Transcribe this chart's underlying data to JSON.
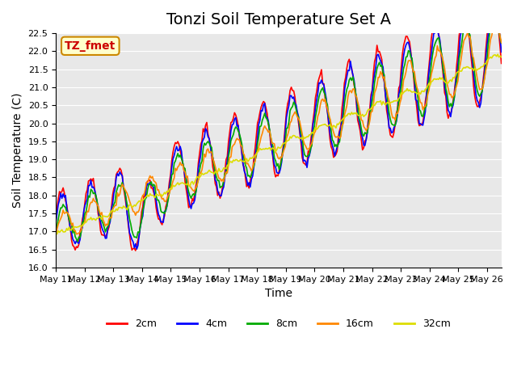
{
  "title": "Tonzi Soil Temperature Set A",
  "xlabel": "Time",
  "ylabel": "Soil Temperature (C)",
  "ylim": [
    16.0,
    22.5
  ],
  "xlim": [
    0,
    15.5
  ],
  "colors": {
    "2cm": "#ff0000",
    "4cm": "#0000ff",
    "8cm": "#00aa00",
    "16cm": "#ff8800",
    "32cm": "#dddd00"
  },
  "legend_labels": [
    "2cm",
    "4cm",
    "8cm",
    "16cm",
    "32cm"
  ],
  "annotation_text": "TZ_fmet",
  "annotation_bg": "#ffffcc",
  "annotation_border": "#cc8800",
  "background_color": "#e8e8e8",
  "x_tick_labels": [
    "May 11",
    "May 12",
    "May 13",
    "May 14",
    "May 15",
    "May 16",
    "May 17",
    "May 18",
    "May 19",
    "May 20",
    "May 21",
    "May 22",
    "May 23",
    "May 24",
    "May 25",
    "May 26"
  ],
  "title_fontsize": 14,
  "axis_label_fontsize": 10,
  "tick_fontsize": 8
}
